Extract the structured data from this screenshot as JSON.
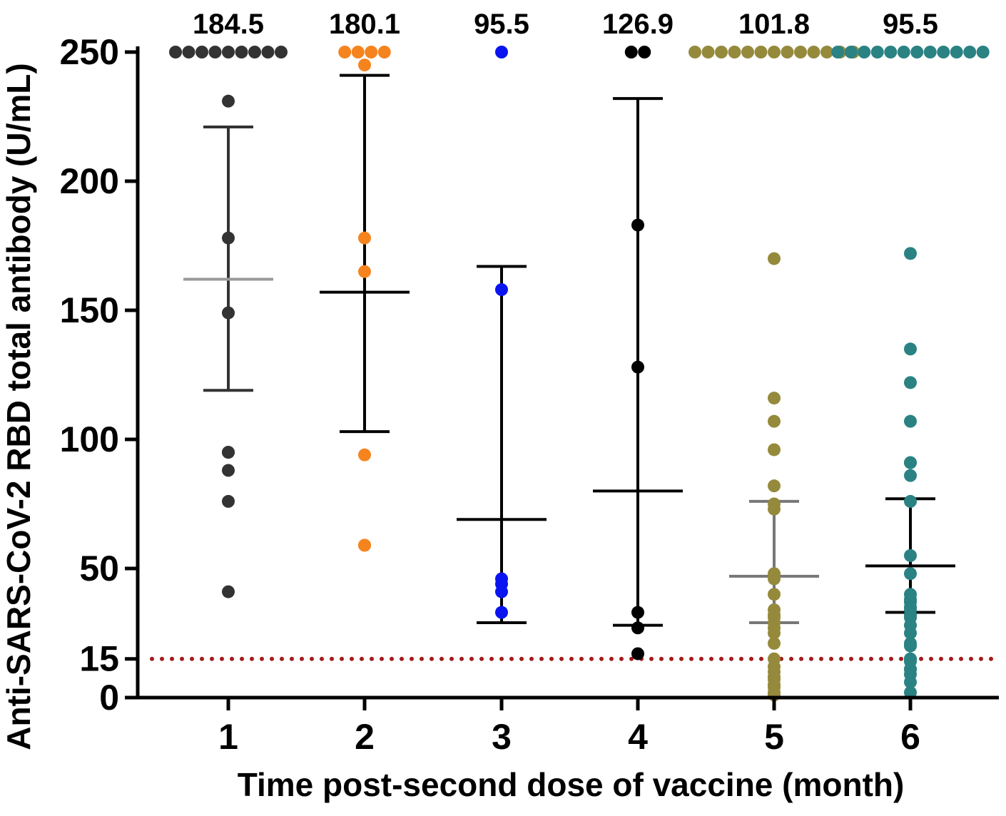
{
  "chart_data": {
    "type": "scatter",
    "title": "",
    "xlabel": "Time post-second dose of vaccine (month)",
    "ylabel": "Anti-SARS-CoV-2 RBD total antibody (U/mL)",
    "categories": [
      "1",
      "2",
      "3",
      "4",
      "5",
      "6"
    ],
    "y_ticks": [
      "0",
      "15",
      "50",
      "100",
      "150",
      "200",
      "250"
    ],
    "ylim": [
      0,
      250
    ],
    "threshold": {
      "value": 15,
      "style": "dotted",
      "color": "#a61a1a"
    },
    "grid": false,
    "legend": "none",
    "series": [
      {
        "category": "1",
        "color": "#333333",
        "stat_color": "#333333",
        "mean_color": "#999999",
        "top_label": "184.5",
        "mean": 162,
        "sd_upper": 221,
        "sd_lower": 119,
        "points": [
          250,
          250,
          250,
          250,
          250,
          250,
          250,
          250,
          250,
          231,
          178,
          149,
          95,
          95,
          88,
          76,
          41
        ]
      },
      {
        "category": "2",
        "color": "#f5841f",
        "stat_color": "#000000",
        "mean_color": "#000000",
        "top_label": "180.1",
        "mean": 157,
        "sd_upper": 241,
        "sd_lower": 103,
        "points": [
          250,
          250,
          250,
          250,
          245,
          178,
          165,
          94,
          59,
          59
        ]
      },
      {
        "category": "3",
        "color": "#0a14f0",
        "stat_color": "#000000",
        "mean_color": "#000000",
        "top_label": "95.5",
        "mean": 69,
        "sd_upper": 167,
        "sd_lower": 29,
        "points": [
          250,
          158,
          46,
          44,
          41,
          33
        ]
      },
      {
        "category": "4",
        "color": "#000000",
        "stat_color": "#000000",
        "mean_color": "#000000",
        "top_label": "126.9",
        "mean": 80,
        "sd_upper": 232,
        "sd_lower": 28,
        "points": [
          250,
          250,
          183,
          128,
          33,
          27,
          17
        ]
      },
      {
        "category": "5",
        "color": "#958a3c",
        "stat_color": "#777777",
        "mean_color": "#777777",
        "top_label": "101.8",
        "mean": 47,
        "sd_upper": 76,
        "sd_lower": 29,
        "points": [
          250,
          250,
          250,
          250,
          250,
          250,
          250,
          250,
          250,
          250,
          250,
          250,
          250,
          170,
          116,
          107,
          96,
          82,
          75,
          73,
          48,
          46,
          40,
          34,
          32,
          31,
          29,
          27,
          25,
          21,
          15,
          12,
          10,
          8,
          7,
          5,
          4,
          2,
          1
        ]
      },
      {
        "category": "6",
        "color": "#2a8283",
        "stat_color": "#000000",
        "mean_color": "#000000",
        "top_label": "95.5",
        "mean": 51,
        "sd_upper": 77,
        "sd_lower": 33,
        "points": [
          250,
          250,
          250,
          250,
          250,
          250,
          250,
          250,
          250,
          250,
          250,
          250,
          172,
          135,
          122,
          107,
          91,
          91,
          86,
          76,
          55,
          48,
          40,
          38,
          37,
          35,
          34,
          32,
          31,
          28,
          25,
          21,
          20,
          15,
          15,
          14,
          11,
          11,
          9,
          6,
          2
        ]
      }
    ]
  }
}
